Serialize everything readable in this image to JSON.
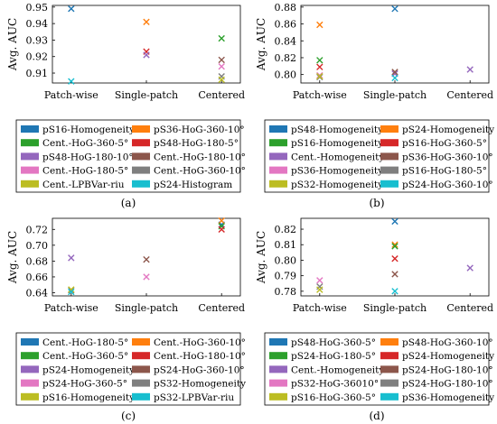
{
  "chart_data": [
    {
      "type": "scatter",
      "caption": "(a)",
      "ylabel": "Avg. AUC",
      "categories": [
        "Patch-wise",
        "Single-patch",
        "Centered"
      ],
      "ylim": [
        0.904,
        0.951
      ],
      "yticks": [
        "0.95",
        "0.94",
        "0.93",
        "0.92",
        "0.91"
      ],
      "ytick_values": [
        0.95,
        0.94,
        0.93,
        0.92,
        0.91
      ],
      "series": [
        {
          "name": "pS16-Homogeneity",
          "color": "#1f77b4",
          "points": [
            [
              "Patch-wise",
              0.949
            ]
          ]
        },
        {
          "name": "pS36-HoG-360-10°",
          "color": "#ff7f0e",
          "points": [
            [
              "Single-patch",
              0.941
            ]
          ]
        },
        {
          "name": "Cent.-HoG-360-5°",
          "color": "#2ca02c",
          "points": [
            [
              "Centered",
              0.931
            ]
          ]
        },
        {
          "name": "pS48-HoG-180-5°",
          "color": "#d62728",
          "points": [
            [
              "Single-patch",
              0.923
            ]
          ]
        },
        {
          "name": "pS48-HoG-180-10°",
          "color": "#9467bd",
          "points": [
            [
              "Single-patch",
              0.921
            ]
          ]
        },
        {
          "name": "Cent.-HoG-180-10°",
          "color": "#8c564b",
          "points": [
            [
              "Centered",
              0.918
            ]
          ]
        },
        {
          "name": "Cent.-HoG-180-5°",
          "color": "#e377c2",
          "points": [
            [
              "Centered",
              0.914
            ]
          ]
        },
        {
          "name": "Cent.-HoG-360-10°",
          "color": "#7f7f7f",
          "points": [
            [
              "Centered",
              0.908
            ]
          ]
        },
        {
          "name": "Cent.-LPBVar-riu",
          "color": "#bcbd22",
          "points": [
            [
              "Centered",
              0.906
            ]
          ]
        },
        {
          "name": "pS24-Histogram",
          "color": "#17becf",
          "points": [
            [
              "Patch-wise",
              0.905
            ]
          ]
        }
      ]
    },
    {
      "type": "scatter",
      "caption": "(b)",
      "ylabel": "Avg. AUC",
      "categories": [
        "Patch-wise",
        "Single-patch",
        "Centered"
      ],
      "ylim": [
        0.79,
        0.882
      ],
      "yticks": [
        "0.88",
        "0.86",
        "0.84",
        "0.82",
        "0.80"
      ],
      "ytick_values": [
        0.88,
        0.86,
        0.84,
        0.82,
        0.8
      ],
      "series": [
        {
          "name": "pS48-Homogeneity",
          "color": "#1f77b4",
          "points": [
            [
              "Single-patch",
              0.878
            ]
          ]
        },
        {
          "name": "pS24-Homogeneity",
          "color": "#ff7f0e",
          "points": [
            [
              "Patch-wise",
              0.859
            ]
          ]
        },
        {
          "name": "pS16-Homogeneity",
          "color": "#2ca02c",
          "points": [
            [
              "Patch-wise",
              0.817
            ]
          ]
        },
        {
          "name": "pS16-HoG-360-5°",
          "color": "#d62728",
          "points": [
            [
              "Patch-wise",
              0.809
            ]
          ]
        },
        {
          "name": "Cent.-Homogeneity",
          "color": "#9467bd",
          "points": [
            [
              "Centered",
              0.806
            ],
            [
              "Single-patch",
              0.801
            ]
          ]
        },
        {
          "name": "pS36-HoG-360-10°",
          "color": "#8c564b",
          "points": [
            [
              "Single-patch",
              0.803
            ]
          ]
        },
        {
          "name": "pS36-Homogeneity",
          "color": "#e377c2",
          "points": [
            [
              "Patch-wise",
              0.799
            ]
          ]
        },
        {
          "name": "pS16-HoG-180-5°",
          "color": "#7f7f7f",
          "points": [
            [
              "Patch-wise",
              0.797
            ]
          ]
        },
        {
          "name": "pS32-Homogeneity",
          "color": "#bcbd22",
          "points": [
            [
              "Patch-wise",
              0.798
            ]
          ]
        },
        {
          "name": "pS24-HoG-360-10°",
          "color": "#17becf",
          "points": [
            [
              "Single-patch",
              0.796
            ]
          ]
        }
      ]
    },
    {
      "type": "scatter",
      "caption": "(c)",
      "ylabel": "Avg. AUC",
      "categories": [
        "Patch-wise",
        "Single-patch",
        "Centered"
      ],
      "ylim": [
        0.636,
        0.734
      ],
      "yticks": [
        "0.72",
        "0.70",
        "0.68",
        "0.66",
        "0.64"
      ],
      "ytick_values": [
        0.72,
        0.7,
        0.68,
        0.66,
        0.64
      ],
      "series": [
        {
          "name": "Cent.-HoG-180-5°",
          "color": "#1f77b4",
          "points": [
            [
              "Centered",
              0.726
            ]
          ]
        },
        {
          "name": "Cent.-HoG-360-10°",
          "color": "#ff7f0e",
          "points": [
            [
              "Centered",
              0.731
            ]
          ]
        },
        {
          "name": "Cent.-HoG-360-5°",
          "color": "#2ca02c",
          "points": [
            [
              "Centered",
              0.724
            ]
          ]
        },
        {
          "name": "Cent.-HoG-180-10°",
          "color": "#d62728",
          "points": [
            [
              "Centered",
              0.72
            ]
          ]
        },
        {
          "name": "pS24-Homogeneity",
          "color": "#9467bd",
          "points": [
            [
              "Patch-wise",
              0.684
            ]
          ]
        },
        {
          "name": "pS24-HoG-360-10°",
          "color": "#8c564b",
          "points": [
            [
              "Single-patch",
              0.682
            ]
          ]
        },
        {
          "name": "pS24-HoG-360-5°",
          "color": "#e377c2",
          "points": [
            [
              "Single-patch",
              0.66
            ]
          ]
        },
        {
          "name": "pS32-Homogeneity",
          "color": "#7f7f7f",
          "points": [
            [
              "Patch-wise",
              0.643
            ]
          ]
        },
        {
          "name": "pS16-Homogeneity",
          "color": "#bcbd22",
          "points": [
            [
              "Patch-wise",
              0.644
            ]
          ]
        },
        {
          "name": "pS32-LPBVar-riu",
          "color": "#17becf",
          "points": [
            [
              "Patch-wise",
              0.641
            ]
          ]
        }
      ]
    },
    {
      "type": "scatter",
      "caption": "(d)",
      "ylabel": "Avg. AUC",
      "categories": [
        "Patch-wise",
        "Single-patch",
        "Centered"
      ],
      "ylim": [
        0.777,
        0.827
      ],
      "yticks": [
        "0.82",
        "0.81",
        "0.80",
        "0.79",
        "0.78"
      ],
      "ytick_values": [
        0.82,
        0.81,
        0.8,
        0.79,
        0.78
      ],
      "series": [
        {
          "name": "pS48-HoG-360-5°",
          "color": "#1f77b4",
          "points": [
            [
              "Single-patch",
              0.825
            ]
          ]
        },
        {
          "name": "pS48-HoG-360-10°",
          "color": "#ff7f0e",
          "points": [
            [
              "Single-patch",
              0.81
            ]
          ]
        },
        {
          "name": "pS24-HoG-180-5°",
          "color": "#2ca02c",
          "points": [
            [
              "Single-patch",
              0.809
            ]
          ]
        },
        {
          "name": "pS24-Homogeneity",
          "color": "#d62728",
          "points": [
            [
              "Single-patch",
              0.801
            ]
          ]
        },
        {
          "name": "Cent.-Homogeneity",
          "color": "#9467bd",
          "points": [
            [
              "Centered",
              0.795
            ]
          ]
        },
        {
          "name": "pS24-HoG-180-10°",
          "color": "#8c564b",
          "points": [
            [
              "Single-patch",
              0.791
            ]
          ]
        },
        {
          "name": "pS32-HoG-36010°",
          "color": "#e377c2",
          "points": [
            [
              "Patch-wise",
              0.787
            ]
          ]
        },
        {
          "name": "pS24-HoG-180-10°",
          "color": "#7f7f7f",
          "points": [
            [
              "Patch-wise",
              0.783
            ]
          ]
        },
        {
          "name": "pS16-HoG-360-5°",
          "color": "#bcbd22",
          "points": [
            [
              "Patch-wise",
              0.781
            ]
          ]
        },
        {
          "name": "pS36-Homogeneity",
          "color": "#17becf",
          "points": [
            [
              "Single-patch",
              0.78
            ]
          ]
        }
      ]
    }
  ]
}
